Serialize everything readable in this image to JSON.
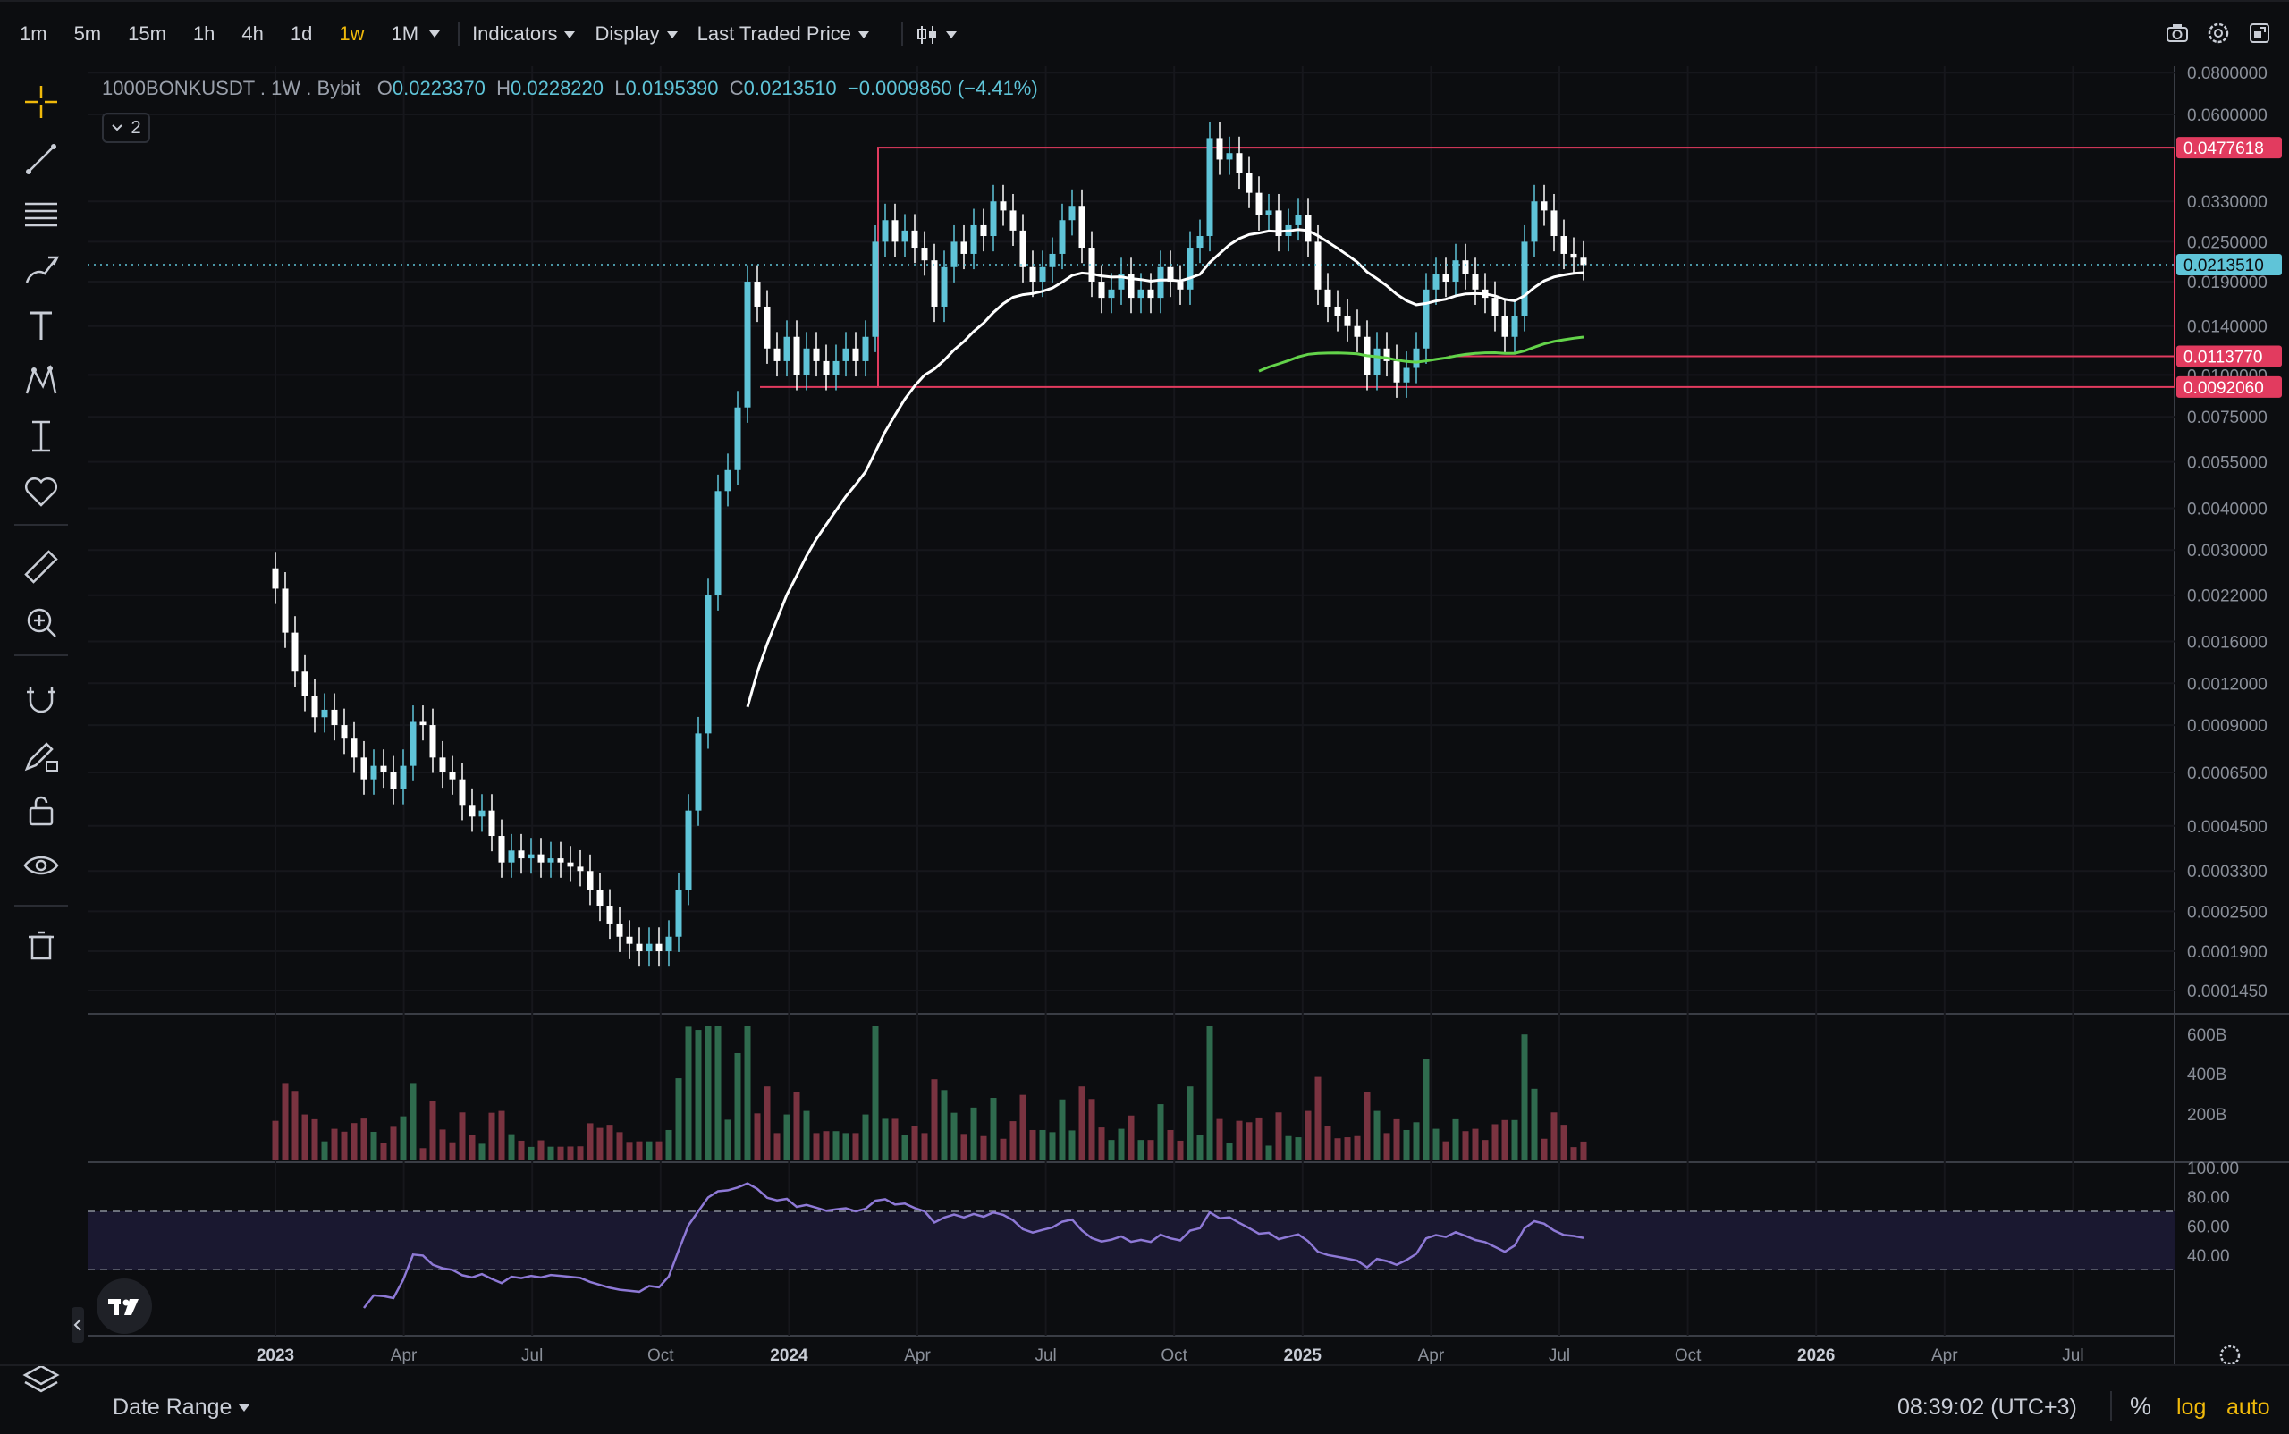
{
  "timeframes": [
    "1m",
    "5m",
    "15m",
    "1h",
    "4h",
    "1d",
    "1w",
    "1M"
  ],
  "active_timeframe": "1w",
  "menus": {
    "indicators": "Indicators",
    "display": "Display",
    "price_source": "Last Traded Price"
  },
  "legend": {
    "symbol": "1000BONKUSDT",
    "interval": "1W",
    "exchange": "Bybit",
    "o_label": "O",
    "o": "0.0223370",
    "h_label": "H",
    "h": "0.0228220",
    "l_label": "L",
    "l": "0.0195390",
    "c_label": "C",
    "c": "0.0213510",
    "change": "−0.0009860 (−4.41%)",
    "collapsed_count": "2"
  },
  "bottom": {
    "date_range": "Date Range",
    "clock": "08:39:02 (UTC+3)",
    "percent": "%",
    "log": "log",
    "auto": "auto"
  },
  "colors": {
    "up": "#5fc4d8",
    "down": "#ffffff",
    "level": "#e23b5f",
    "ema_white": "#ffffff",
    "ema_green": "#63d34a",
    "rsi": "#8e79d6",
    "vol_up": "#2f6b4e",
    "vol_down": "#7a3340",
    "accent": "#f0b90b"
  },
  "chart_data": {
    "type": "candlestick",
    "scale": "log",
    "price_axis_ticks": [
      "0.0800000",
      "0.0600000",
      "0.0330000",
      "0.0250000",
      "0.0190000",
      "0.0140000",
      "0.0100000",
      "0.0075000",
      "0.0055000",
      "0.0040000",
      "0.0030000",
      "0.0022000",
      "0.0016000",
      "0.0012000",
      "0.0009000",
      "0.0006500",
      "0.0004500",
      "0.0003300",
      "0.0002500",
      "0.0001900",
      "0.0001450"
    ],
    "price_labels": [
      {
        "value": "0.0477618",
        "kind": "level"
      },
      {
        "value": "0.0213510",
        "kind": "last"
      },
      {
        "value": "0.0113770",
        "kind": "level"
      },
      {
        "value": "0.0092060",
        "kind": "level"
      }
    ],
    "time_axis": [
      "2023",
      "Apr",
      "Jul",
      "Oct",
      "2024",
      "Apr",
      "Jul",
      "Oct",
      "2025",
      "Apr",
      "Jul",
      "Oct",
      "2026",
      "Apr",
      "Jul"
    ],
    "volume_axis": [
      "600B",
      "400B",
      "200B"
    ],
    "rsi_axis": [
      "100.00",
      "80.00",
      "60.00",
      "40.00"
    ],
    "rsi_bands": [
      70,
      30
    ],
    "horizontal_levels": [
      0.0477618,
      0.011377,
      0.009206
    ],
    "closes_approx": [
      0.0023,
      0.0017,
      0.0013,
      0.0011,
      0.00095,
      0.001,
      0.0009,
      0.00082,
      0.00072,
      0.00062,
      0.00068,
      0.00065,
      0.00058,
      0.00068,
      0.00092,
      0.0009,
      0.00072,
      0.00065,
      0.00062,
      0.00052,
      0.00048,
      0.0005,
      0.00042,
      0.00035,
      0.00038,
      0.00036,
      0.00037,
      0.00035,
      0.00036,
      0.00035,
      0.00034,
      0.00033,
      0.00029,
      0.00026,
      0.00023,
      0.00021,
      0.0002,
      0.00019,
      0.0002,
      0.00019,
      0.00021,
      0.00029,
      0.0005,
      0.00085,
      0.0022,
      0.0045,
      0.0052,
      0.008,
      0.019,
      0.016,
      0.012,
      0.011,
      0.013,
      0.01,
      0.012,
      0.011,
      0.01,
      0.011,
      0.012,
      0.011,
      0.013,
      0.025,
      0.029,
      0.025,
      0.027,
      0.024,
      0.022,
      0.016,
      0.021,
      0.025,
      0.023,
      0.028,
      0.026,
      0.033,
      0.031,
      0.027,
      0.021,
      0.019,
      0.021,
      0.023,
      0.029,
      0.032,
      0.024,
      0.019,
      0.017,
      0.018,
      0.02,
      0.017,
      0.018,
      0.017,
      0.021,
      0.019,
      0.018,
      0.024,
      0.026,
      0.051,
      0.044,
      0.046,
      0.04,
      0.035,
      0.03,
      0.031,
      0.026,
      0.028,
      0.03,
      0.025,
      0.018,
      0.016,
      0.015,
      0.014,
      0.013,
      0.01,
      0.012,
      0.011,
      0.0095,
      0.0105,
      0.012,
      0.018,
      0.02,
      0.019,
      0.022,
      0.02,
      0.018,
      0.017,
      0.015,
      0.013,
      0.015,
      0.025,
      0.033,
      0.031,
      0.026,
      0.023,
      0.0224,
      0.0213
    ]
  }
}
